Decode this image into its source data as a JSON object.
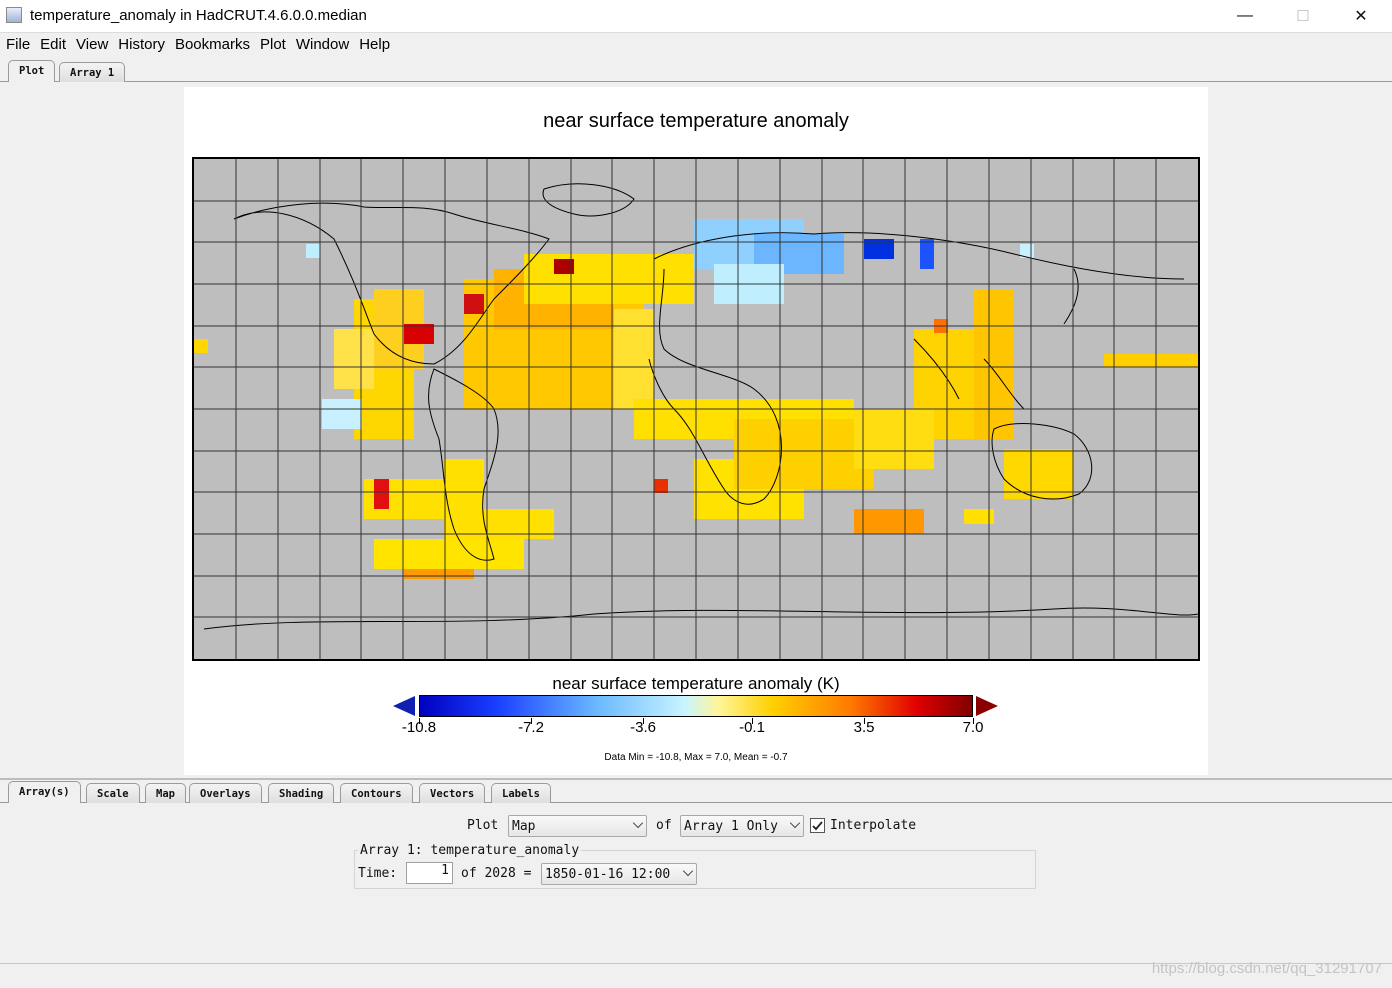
{
  "window": {
    "title": "temperature_anomaly in HadCRUT.4.6.0.0.median",
    "minimize": "—",
    "maximize": "☐",
    "close": "✕"
  },
  "menu": [
    "File",
    "Edit",
    "View",
    "History",
    "Bookmarks",
    "Plot",
    "Window",
    "Help"
  ],
  "top_tabs": [
    "Plot",
    "Array 1"
  ],
  "plot": {
    "title": "near surface temperature anomaly",
    "colorbar_title": "near surface temperature anomaly (K)",
    "colorbar_ticks": [
      "-10.8",
      "-7.2",
      "-3.6",
      "-0.1",
      "3.5",
      "7.0"
    ],
    "stats": "Data Min = -10.8, Max = 7.0, Mean = -0.7"
  },
  "chart_data": {
    "type": "heatmap",
    "projection": "equirectangular",
    "grid": true,
    "title": "near surface temperature anomaly",
    "colorbar": {
      "label": "near surface temperature anomaly (K)",
      "min": -10.8,
      "max": 7.0,
      "ticks": [
        -10.8,
        -7.2,
        -3.6,
        -0.1,
        3.5,
        7.0
      ],
      "colors": {
        "low": "#0000c0",
        "mid": "#fff59a",
        "high": "#800000"
      }
    },
    "stats": {
      "min": -10.8,
      "max": 7.0,
      "mean": -0.7
    },
    "missing_color": "#bebebe"
  },
  "bottom_tabs": [
    "Array(s)",
    "Scale",
    "Map",
    "Overlays",
    "Shading",
    "Contours",
    "Vectors",
    "Labels"
  ],
  "controls": {
    "plot_label": "Plot",
    "plot_type": "Map",
    "of_label": "of",
    "array_selection": "Array 1 Only",
    "interpolate_label": "Interpolate",
    "interpolate_checked": true,
    "array_group_title": "Array 1: temperature_anomaly",
    "time_label": "Time:",
    "time_index": "1",
    "time_of": "of 2028 =",
    "time_value": "1850-01-16 12:00"
  },
  "watermark": "https://blog.csdn.net/qq_31291707"
}
